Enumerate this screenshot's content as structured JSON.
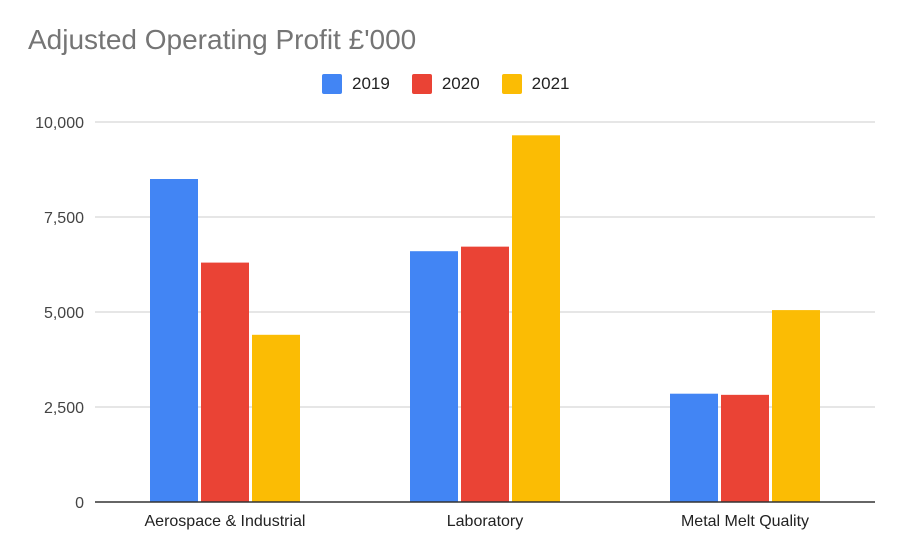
{
  "chart_data": {
    "type": "bar",
    "title": "Adjusted Operating Profit £'000",
    "categories": [
      "Aerospace & Industrial",
      "Laboratory",
      "Metal Melt Quality"
    ],
    "series": [
      {
        "name": "2019",
        "color": "#4285F4",
        "values": [
          8500,
          6600,
          2850
        ]
      },
      {
        "name": "2020",
        "color": "#EA4335",
        "values": [
          6300,
          6720,
          2820
        ]
      },
      {
        "name": "2021",
        "color": "#FBBC04",
        "values": [
          4400,
          9650,
          5050
        ]
      }
    ],
    "ylim": [
      0,
      10000
    ],
    "yticks": [
      {
        "value": 0,
        "label": "0"
      },
      {
        "value": 2500,
        "label": "2,500"
      },
      {
        "value": 5000,
        "label": "5,000"
      },
      {
        "value": 7500,
        "label": "7,500"
      },
      {
        "value": 10000,
        "label": "10,000"
      }
    ],
    "grid": true,
    "legend_position": "top-center",
    "xlabel": "",
    "ylabel": ""
  }
}
